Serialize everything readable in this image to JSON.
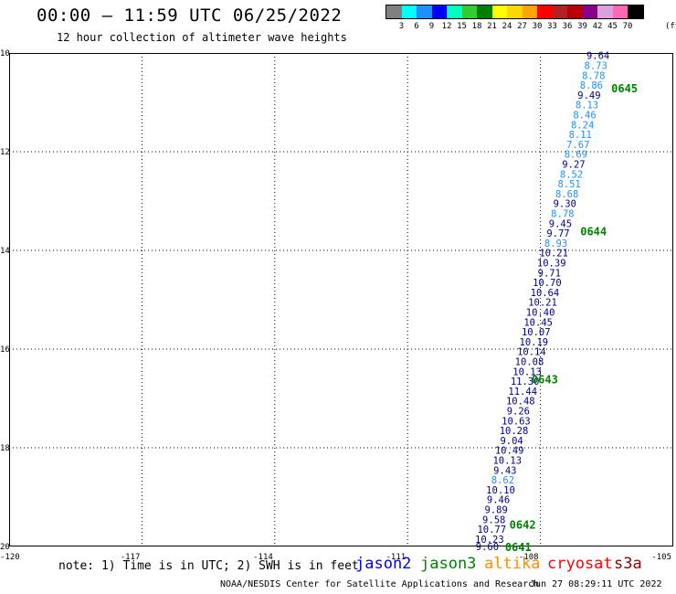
{
  "header": {
    "title": "00:00 – 11:59 UTC 06/25/2022",
    "subtitle": "12 hour collection of altimeter wave heights"
  },
  "legend": {
    "unit": "(ft)",
    "colors": [
      "#808080",
      "#00ffff",
      "#1e90ff",
      "#0000ff",
      "#00ffc0",
      "#32cd32",
      "#008000",
      "#ffff00",
      "#ffd700",
      "#ffa500",
      "#ff0000",
      "#b22222",
      "#ba0000",
      "#8b008b",
      "#dda0dd",
      "#ff69b4",
      "#000000"
    ],
    "labels": [
      "3",
      "6",
      "9",
      "12",
      "15",
      "18",
      "21",
      "24",
      "27",
      "30",
      "33",
      "36",
      "39",
      "42",
      "45",
      "70"
    ]
  },
  "axes": {
    "x_ticks": [
      "-120",
      "-117",
      "-114",
      "-111",
      "-108",
      "-105"
    ],
    "y_ticks": [
      "10",
      "12",
      "14",
      "16",
      "18",
      "20"
    ]
  },
  "chart_data": {
    "type": "scatter",
    "xlim": [
      -120,
      -105
    ],
    "ylim": [
      10,
      20
    ],
    "grid": true,
    "points": [
      {
        "x": -106.7,
        "y": 10.05,
        "label": "9.64",
        "color": "#00008b"
      },
      {
        "x": -106.75,
        "y": 10.25,
        "label": "8.73",
        "color": "#1e90ff"
      },
      {
        "x": -106.8,
        "y": 10.45,
        "label": "8.78",
        "color": "#1e90ff"
      },
      {
        "x": -106.85,
        "y": 10.65,
        "label": "8.86",
        "color": "#1e90ff"
      },
      {
        "x": -106.9,
        "y": 10.85,
        "label": "9.49",
        "color": "#00008b"
      },
      {
        "x": -106.95,
        "y": 11.05,
        "label": "8.13",
        "color": "#1e90ff"
      },
      {
        "x": -107.0,
        "y": 11.25,
        "label": "8.46",
        "color": "#1e90ff"
      },
      {
        "x": -107.05,
        "y": 11.45,
        "label": "8.24",
        "color": "#1e90ff"
      },
      {
        "x": -107.1,
        "y": 11.65,
        "label": "8.11",
        "color": "#1e90ff"
      },
      {
        "x": -107.15,
        "y": 11.85,
        "label": "7.67",
        "color": "#1e90ff"
      },
      {
        "x": -107.2,
        "y": 12.05,
        "label": "8.69",
        "color": "#1e90ff"
      },
      {
        "x": -107.25,
        "y": 12.25,
        "label": "9.27",
        "color": "#00008b"
      },
      {
        "x": -107.3,
        "y": 12.45,
        "label": "8.52",
        "color": "#1e90ff"
      },
      {
        "x": -107.35,
        "y": 12.65,
        "label": "8.51",
        "color": "#1e90ff"
      },
      {
        "x": -107.4,
        "y": 12.85,
        "label": "8.68",
        "color": "#1e90ff"
      },
      {
        "x": -107.45,
        "y": 13.05,
        "label": "9.30",
        "color": "#00008b"
      },
      {
        "x": -107.5,
        "y": 13.25,
        "label": "8.78",
        "color": "#1e90ff"
      },
      {
        "x": -107.55,
        "y": 13.45,
        "label": "9.45",
        "color": "#00008b"
      },
      {
        "x": -107.6,
        "y": 13.65,
        "label": "9.77",
        "color": "#00008b"
      },
      {
        "x": -107.65,
        "y": 13.85,
        "label": "8.93",
        "color": "#1e90ff"
      },
      {
        "x": -107.7,
        "y": 14.05,
        "label": "10.21",
        "color": "#00008b"
      },
      {
        "x": -107.75,
        "y": 14.25,
        "label": "10.39",
        "color": "#00008b"
      },
      {
        "x": -107.8,
        "y": 14.45,
        "label": "9.71",
        "color": "#00008b"
      },
      {
        "x": -107.85,
        "y": 14.65,
        "label": "10.70",
        "color": "#00008b"
      },
      {
        "x": -107.9,
        "y": 14.85,
        "label": "10.64",
        "color": "#00008b"
      },
      {
        "x": -107.95,
        "y": 15.05,
        "label": "10.21",
        "color": "#00008b"
      },
      {
        "x": -108.0,
        "y": 15.25,
        "label": "10.40",
        "color": "#00008b"
      },
      {
        "x": -108.05,
        "y": 15.45,
        "label": "10.45",
        "color": "#00008b"
      },
      {
        "x": -108.1,
        "y": 15.65,
        "label": "10.07",
        "color": "#00008b"
      },
      {
        "x": -108.15,
        "y": 15.85,
        "label": "10.19",
        "color": "#00008b"
      },
      {
        "x": -108.2,
        "y": 16.05,
        "label": "10.14",
        "color": "#00008b"
      },
      {
        "x": -108.25,
        "y": 16.25,
        "label": "10.08",
        "color": "#00008b"
      },
      {
        "x": -108.3,
        "y": 16.45,
        "label": "10.13",
        "color": "#00008b"
      },
      {
        "x": -108.35,
        "y": 16.65,
        "label": "11.30",
        "color": "#00008b"
      },
      {
        "x": -108.4,
        "y": 16.85,
        "label": "11.44",
        "color": "#00008b"
      },
      {
        "x": -108.45,
        "y": 17.05,
        "label": "10.48",
        "color": "#00008b"
      },
      {
        "x": -108.5,
        "y": 17.25,
        "label": "9.26",
        "color": "#00008b"
      },
      {
        "x": -108.55,
        "y": 17.45,
        "label": "10.63",
        "color": "#00008b"
      },
      {
        "x": -108.6,
        "y": 17.65,
        "label": "10.28",
        "color": "#00008b"
      },
      {
        "x": -108.65,
        "y": 17.85,
        "label": "9.04",
        "color": "#00008b"
      },
      {
        "x": -108.7,
        "y": 18.05,
        "label": "10.49",
        "color": "#00008b"
      },
      {
        "x": -108.75,
        "y": 18.25,
        "label": "10.13",
        "color": "#00008b"
      },
      {
        "x": -108.8,
        "y": 18.45,
        "label": "9.43",
        "color": "#00008b"
      },
      {
        "x": -108.85,
        "y": 18.65,
        "label": "8.62",
        "color": "#1e90ff"
      },
      {
        "x": -108.9,
        "y": 18.85,
        "label": "10.10",
        "color": "#00008b"
      },
      {
        "x": -108.95,
        "y": 19.05,
        "label": "9.46",
        "color": "#00008b"
      },
      {
        "x": -109.0,
        "y": 19.25,
        "label": "9.89",
        "color": "#00008b"
      },
      {
        "x": -109.05,
        "y": 19.45,
        "label": "9.58",
        "color": "#00008b"
      },
      {
        "x": -109.1,
        "y": 19.65,
        "label": "10.77",
        "color": "#00008b"
      },
      {
        "x": -109.15,
        "y": 19.85,
        "label": "10.23",
        "color": "#00008b"
      },
      {
        "x": -109.2,
        "y": 20.0,
        "label": "9.60",
        "color": "#00008b"
      }
    ],
    "time_labels": [
      {
        "x": -106.4,
        "y": 10.7,
        "label": "0645"
      },
      {
        "x": -107.1,
        "y": 13.6,
        "label": "0644"
      },
      {
        "x": -108.2,
        "y": 16.6,
        "label": "0643"
      },
      {
        "x": -108.7,
        "y": 19.55,
        "label": "0642"
      },
      {
        "x": -108.8,
        "y": 20.0,
        "label": "0641"
      }
    ]
  },
  "footer": {
    "note": "note: 1) Time is in UTC; 2) SWH is in feet",
    "satellites": [
      {
        "name": "jason2",
        "color": "#0000ff"
      },
      {
        "name": "jason3",
        "color": "#008000"
      },
      {
        "name": "altika",
        "color": "#ff8c00"
      },
      {
        "name": "cryosat",
        "color": "#ff0000"
      },
      {
        "name": "s3a",
        "color": "#8b0000"
      }
    ],
    "credit": "NOAA/NESDIS Center for Satellite Applications and Research",
    "timestamp": "Jun 27 08:29:11 UTC 2022"
  }
}
